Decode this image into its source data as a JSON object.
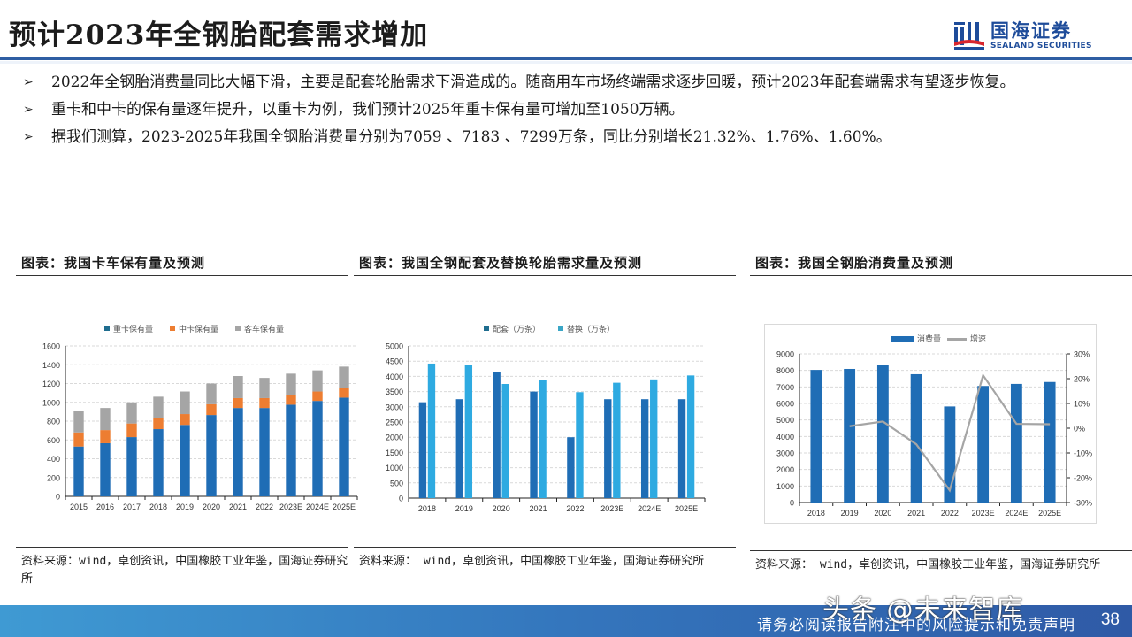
{
  "header": {
    "title": "预计2023年全钢胎配套需求增加",
    "logo_cn": "国海证券",
    "logo_en": "SEALAND SECURITIES"
  },
  "bullets": [
    {
      "arrow": "➢",
      "text": "2022年全钢胎消费量同比大幅下滑，主要是配套轮胎需求下滑造成的。随商用车市场终端需求逐步回暖，预计2023年配套端需求有望逐步恢复。"
    },
    {
      "arrow": "➢",
      "text": "重卡和中卡的保有量逐年提升，以重卡为例，我们预计2025年重卡保有量可增加至1050万辆。"
    },
    {
      "arrow": "➢",
      "text": "据我们测算，2023-2025年我国全钢胎消费量分别为7059 、7183 、7299万条，同比分别增长21.32%、1.76%、1.60%。"
    }
  ],
  "panels": [
    {
      "title": "图表：我国卡车保有量及预测",
      "source": "资料来源：wind，卓创资讯，中国橡胶工业年鉴，国海证券研究所"
    },
    {
      "title": "图表：我国全钢配套及替换轮胎需求量及预测",
      "source": "资料来源： wind，卓创资讯，中国橡胶工业年鉴，国海证券研究所"
    },
    {
      "title": "图表：我国全钢胎消费量及预测",
      "source": "资料来源： wind，卓创资讯，中国橡胶工业年鉴，国海证券研究所"
    }
  ],
  "footer": {
    "note": "请务必阅读报告附注中的风险提示和免责声明",
    "page": "38",
    "watermark": "头条 @未来智库"
  },
  "colors": {
    "accent": "#2f5ea3",
    "bar_dark": "#1f6db5",
    "bar_orange": "#ed7d31",
    "bar_gray": "#a5a5a5",
    "bar_light": "#2eaae1",
    "line_gray": "#a5a5a5"
  },
  "chart_data": [
    {
      "type": "bar",
      "stacked": true,
      "title": "我国卡车保有量及预测",
      "categories": [
        "2015",
        "2016",
        "2017",
        "2018",
        "2019",
        "2020",
        "2021",
        "2022",
        "2023E",
        "2024E",
        "2025E"
      ],
      "series": [
        {
          "name": "重卡保有量",
          "values": [
            530,
            565,
            630,
            715,
            760,
            865,
            940,
            940,
            975,
            1015,
            1050
          ]
        },
        {
          "name": "中卡保有量",
          "values": [
            150,
            140,
            145,
            120,
            115,
            115,
            105,
            105,
            105,
            100,
            100
          ]
        },
        {
          "name": "客车保有量",
          "values": [
            230,
            235,
            225,
            225,
            240,
            220,
            235,
            215,
            225,
            225,
            230
          ]
        }
      ],
      "ylim": [
        0,
        1600
      ],
      "yticks": [
        0,
        200,
        400,
        600,
        800,
        1000,
        1200,
        1400,
        1600
      ],
      "legend_position": "top",
      "grid": true
    },
    {
      "type": "bar",
      "title": "我国全钢配套及替换轮胎需求量及预测",
      "categories": [
        "2018",
        "2019",
        "2020",
        "2021",
        "2022",
        "2023E",
        "2024E",
        "2025E"
      ],
      "series": [
        {
          "name": "配套（万条）",
          "values": [
            3150,
            3250,
            4150,
            3500,
            2000,
            3250,
            3250,
            3250
          ]
        },
        {
          "name": "替换（万条）",
          "values": [
            4420,
            4380,
            3750,
            3870,
            3480,
            3790,
            3900,
            4030
          ]
        }
      ],
      "ylim": [
        0,
        5000
      ],
      "yticks": [
        0,
        500,
        1000,
        1500,
        2000,
        2500,
        3000,
        3500,
        4000,
        4500,
        5000
      ],
      "legend_position": "top",
      "grid": true
    },
    {
      "type": "bar+line",
      "title": "我国全钢胎消费量及预测",
      "categories": [
        "2018",
        "2019",
        "2020",
        "2021",
        "2022",
        "2023E",
        "2024E",
        "2025E"
      ],
      "series": [
        {
          "name": "消费量",
          "type": "bar",
          "axis": "left",
          "values": [
            8030,
            8090,
            8310,
            7770,
            5818,
            7059,
            7183,
            7299
          ]
        },
        {
          "name": "增速",
          "type": "line",
          "axis": "right",
          "values": [
            null,
            0.8,
            2.7,
            -6.5,
            -25.1,
            21.32,
            1.76,
            1.6
          ]
        }
      ],
      "ylim": [
        0,
        9000
      ],
      "yticks": [
        0,
        1000,
        2000,
        3000,
        4000,
        5000,
        6000,
        7000,
        8000,
        9000
      ],
      "y2lim": [
        -30,
        30
      ],
      "y2ticks": [
        "-30%",
        "-20%",
        "-10%",
        "0%",
        "10%",
        "20%",
        "30%"
      ],
      "legend_position": "top",
      "grid": true
    }
  ]
}
